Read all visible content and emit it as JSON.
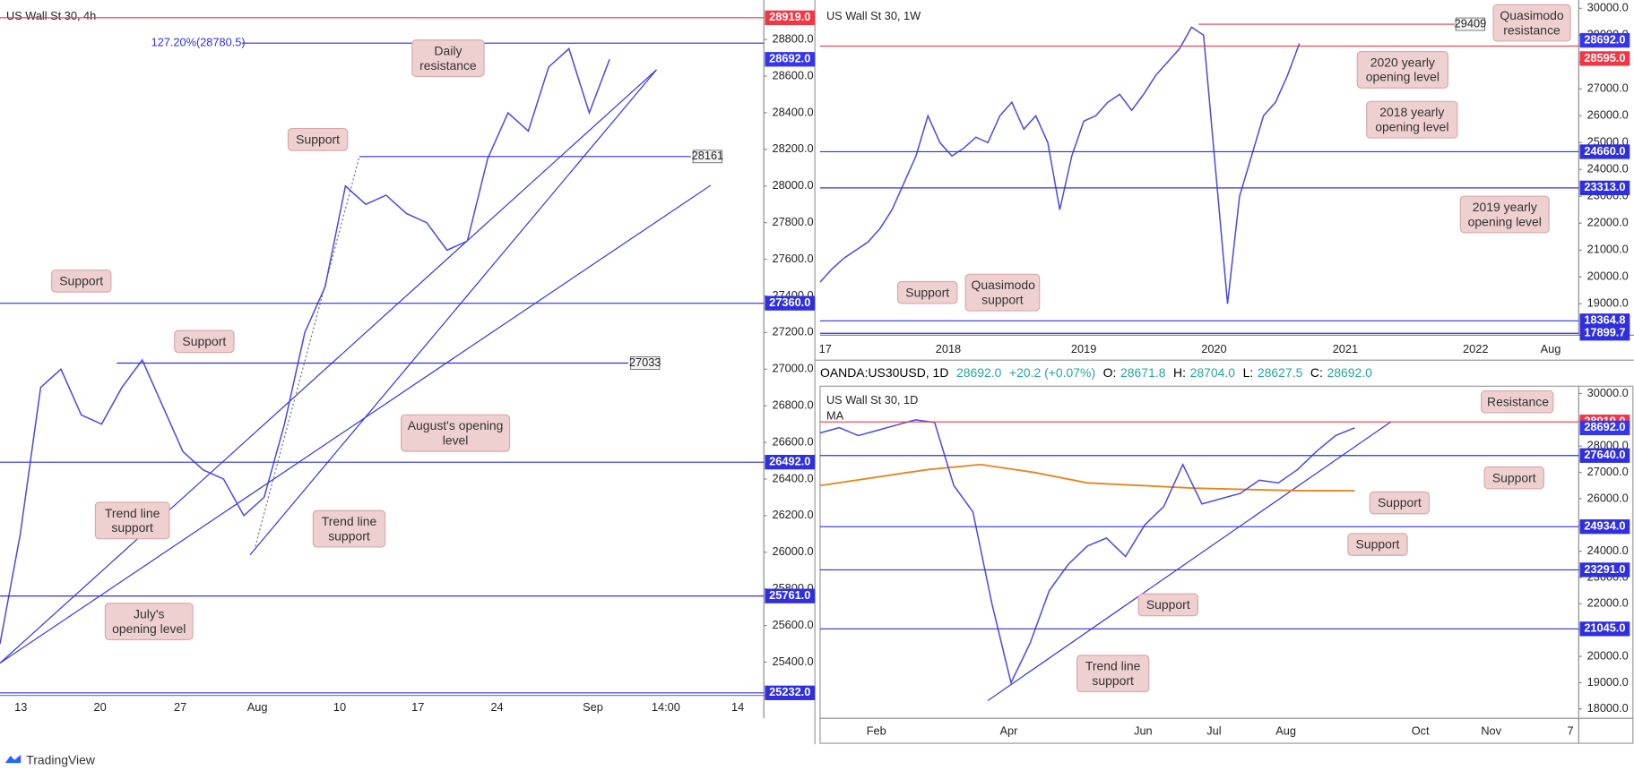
{
  "panels": [
    {
      "title": "US Wall St 30, 4h",
      "ylim": [
        25224,
        29016
      ],
      "yticks": [
        {
          "value": 25400,
          "label": "25400.0"
        },
        {
          "value": 25600,
          "label": "25600.0"
        },
        {
          "value": 25800,
          "label": "25800.0"
        },
        {
          "value": 26000,
          "label": "26000.0"
        },
        {
          "value": 26200,
          "label": "26200.0"
        },
        {
          "value": 26400,
          "label": "26400.0"
        },
        {
          "value": 26600,
          "label": "26600.0"
        },
        {
          "value": 26800,
          "label": "26800.0"
        },
        {
          "value": 27000,
          "label": "27000.0"
        },
        {
          "value": 27200,
          "label": "27200.0"
        },
        {
          "value": 27400,
          "label": "27400.0"
        },
        {
          "value": 27600,
          "label": "27600.0"
        },
        {
          "value": 27800,
          "label": "27800.0"
        },
        {
          "value": 28000,
          "label": "28000.0"
        },
        {
          "value": 28200,
          "label": "28200.0"
        },
        {
          "value": 28400,
          "label": "28400.0"
        },
        {
          "value": 28600,
          "label": "28600.0"
        },
        {
          "value": 28800,
          "label": "28800.0"
        }
      ],
      "xticks": [
        "13",
        "20",
        "27",
        "Aug",
        "10",
        "17",
        "24",
        "Sep",
        "14:00",
        "14"
      ],
      "price": {
        "color": "#4a4ae0",
        "values": [
          25500,
          26100,
          26900,
          27000,
          26750,
          26700,
          26900,
          27050,
          26800,
          26550,
          26450,
          26400,
          26200,
          26300,
          26700,
          27200,
          27450,
          28000,
          27900,
          27950,
          27850,
          27800,
          27650,
          27700,
          28150,
          28400,
          28300,
          28650,
          28750,
          28400,
          28692
        ]
      },
      "levels": [
        {
          "value": 28919,
          "label": "28919.0",
          "color": "#f23645"
        },
        {
          "value": 28780.5,
          "label": "127.20%(28780.5)",
          "color": "#2f2fe0"
        },
        {
          "value": 28692,
          "label": "28692.0",
          "color": "#3535f0"
        },
        {
          "value": 28161,
          "color": "#2f2fe0"
        },
        {
          "value": 27360,
          "label": "27360.0",
          "color": "#2f2fe0"
        },
        {
          "value": 27033,
          "color": "#2f2fe0"
        },
        {
          "value": 26492,
          "label": "26492.0",
          "color": "#2f2fe0"
        },
        {
          "value": 25761,
          "label": "25761.0",
          "color": "#2f2fe0"
        },
        {
          "value": 25232,
          "label": "25232.0",
          "color": "#2f2fe0"
        }
      ],
      "notes": [
        "Daily resistance",
        "Support",
        "Support",
        "Support",
        "August's opening level",
        "Trend line support",
        "Trend line support",
        "July's opening level"
      ]
    },
    {
      "title": "US Wall St 30, 1W",
      "ylim": [
        17829,
        30310
      ],
      "yticks": [
        {
          "value": 19000,
          "label": "19000.0"
        },
        {
          "value": 20000,
          "label": "20000.0"
        },
        {
          "value": 21000,
          "label": "21000.0"
        },
        {
          "value": 22000,
          "label": "22000.0"
        },
        {
          "value": 23000,
          "label": "23000.0"
        },
        {
          "value": 24000,
          "label": "24000.0"
        },
        {
          "value": 25000,
          "label": "25000.0"
        },
        {
          "value": 26000,
          "label": "26000.0"
        },
        {
          "value": 27000,
          "label": "27000.0"
        },
        {
          "value": 28000,
          "label": "28000.0"
        },
        {
          "value": 29000,
          "label": "29000.0"
        },
        {
          "value": 30000,
          "label": "30000.0"
        }
      ],
      "xticks": [
        "17",
        "2018",
        "2019",
        "2020",
        "2021",
        "2022",
        "Aug"
      ],
      "price": {
        "color": "#4a4ae0",
        "values": [
          19800,
          20300,
          20700,
          21000,
          21300,
          21800,
          22500,
          23500,
          24500,
          26000,
          25000,
          24500,
          24800,
          25200,
          25000,
          26000,
          26500,
          25500,
          26000,
          25000,
          22500,
          24500,
          25800,
          26000,
          26500,
          26800,
          26200,
          26800,
          27500,
          28000,
          28500,
          29300,
          29000,
          24000,
          19000,
          23000,
          24500,
          26000,
          26500,
          27500,
          28692
        ]
      },
      "levels": [
        {
          "value": 29409,
          "color": "#f23645"
        },
        {
          "value": 28692,
          "label": "28692.0",
          "color": "#3535f0"
        },
        {
          "value": 28595,
          "label": "28595.0",
          "color": "#f23645"
        },
        {
          "value": 24660,
          "label": "24660.0",
          "color": "#2f2fe0"
        },
        {
          "value": 23313,
          "label": "23313.0",
          "color": "#2f2fe0"
        },
        {
          "value": 18364.8,
          "label": "18364.8",
          "color": "#2f2fe0"
        },
        {
          "value": 17899.7,
          "label": "17899.7",
          "color": "#2f2fe0"
        }
      ],
      "notes": [
        "Quasimodo resistance",
        "2020 yearly opening level",
        "2018 yearly opening level",
        "2019 yearly opening level",
        "Support",
        "Quasimodo support"
      ]
    },
    {
      "title": "US Wall St 30, 1D",
      "ylim": [
        17644,
        30238
      ],
      "yticks": [
        {
          "value": 18000,
          "label": "18000.0"
        },
        {
          "value": 19000,
          "label": "19000.0"
        },
        {
          "value": 20000,
          "label": "20000.0"
        },
        {
          "value": 21000,
          "label": "21000.0"
        },
        {
          "value": 22000,
          "label": "22000.0"
        },
        {
          "value": 23000,
          "label": "23000.0"
        },
        {
          "value": 24000,
          "label": "24000.0"
        },
        {
          "value": 25000,
          "label": "25000.0"
        },
        {
          "value": 26000,
          "label": "26000.0"
        },
        {
          "value": 27000,
          "label": "27000.0"
        },
        {
          "value": 28000,
          "label": "28000.0"
        },
        {
          "value": 29000,
          "label": "29000.0"
        },
        {
          "value": 30000,
          "label": "30000.0"
        }
      ],
      "xticks": [
        "Feb",
        "Apr",
        "Jun",
        "Jul",
        "Aug",
        "Oct",
        "Nov",
        "7"
      ],
      "price": {
        "color": "#4a4ae0",
        "values": [
          28500,
          28700,
          28400,
          28600,
          28800,
          29000,
          28900,
          26500,
          25500,
          22000,
          19000,
          20500,
          22500,
          23500,
          24200,
          24500,
          23800,
          25000,
          25700,
          27300,
          25800,
          26000,
          26200,
          26700,
          26600,
          27100,
          27800,
          28400,
          28692
        ]
      },
      "ma": {
        "name": "MA",
        "color": "#e8841e",
        "values": [
          26500,
          26800,
          27100,
          27300,
          27000,
          26600,
          26500,
          26400,
          26350,
          26300,
          26300
        ]
      },
      "levels": [
        {
          "value": 28919,
          "label": "28919.0",
          "color": "#f23645"
        },
        {
          "value": 28692,
          "label": "28692.0",
          "color": "#3535f0"
        },
        {
          "value": 27640,
          "label": "27640.0",
          "color": "#2f2fe0"
        },
        {
          "value": 24934,
          "label": "24934.0",
          "color": "#2f2fe0"
        },
        {
          "value": 23291,
          "label": "23291.0",
          "color": "#2f2fe0"
        },
        {
          "value": 21045,
          "label": "21045.0",
          "color": "#2f2fe0"
        }
      ],
      "notes": [
        "Resistance",
        "Support",
        "Support",
        "Support",
        "Support",
        "Trend line support"
      ]
    }
  ],
  "info": {
    "symbol": "OANDA:US30USD, 1D",
    "last": "28692.0",
    "change": "+20.2 (+0.07%)",
    "o_key": "O:",
    "o": "28671.8",
    "h_key": "H:",
    "h": "28704.0",
    "l_key": "L:",
    "l": "28627.5",
    "c_key": "C:",
    "c": "28692.0"
  },
  "brand": "TradingView"
}
